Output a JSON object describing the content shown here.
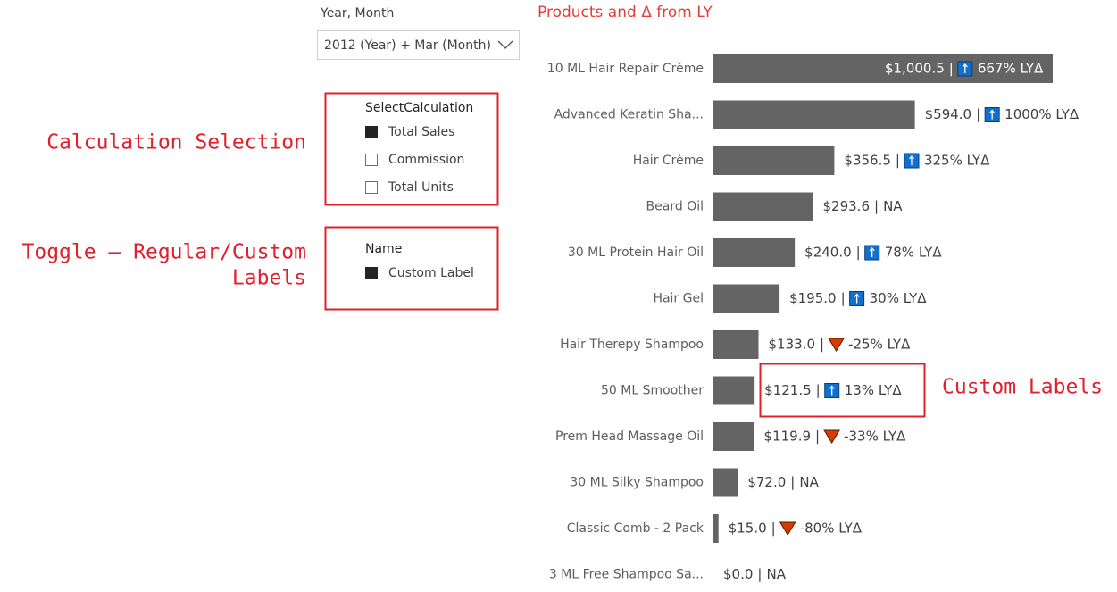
{
  "slicer": {
    "title": "Year, Month",
    "value": "2012 (Year) + Mar (Month)"
  },
  "calculation": {
    "title": "SelectCalculation",
    "items": [
      {
        "label": "Total Sales",
        "selected": true
      },
      {
        "label": "Commission",
        "selected": false
      },
      {
        "label": "Total Units",
        "selected": false
      }
    ]
  },
  "name_filter": {
    "title": "Name",
    "items": [
      {
        "label": "Custom Label",
        "selected": true
      }
    ]
  },
  "annotations": {
    "calculation": "Calculation Selection",
    "toggle": [
      "Toggle – Regular/Custom",
      "Labels"
    ],
    "custom": "Custom Labels"
  },
  "chart_data": {
    "type": "bar",
    "orientation": "horizontal",
    "title": "Products and Δ from LY",
    "color": "#646464",
    "categories": [
      "10 ML Hair Repair Crème",
      "Advanced Keratin Sha...",
      "Hair Crème",
      "Beard Oil",
      "30 ML Protein Hair Oil",
      "Hair Gel",
      "Hair Therepy Shampoo",
      "50 ML Smoother",
      "Prem Head Massage Oil",
      "30 ML Silky Shampoo",
      "Classic Comb - 2 Pack",
      "3 ML Free Shampoo Sa..."
    ],
    "values": [
      1000.5,
      594.0,
      356.5,
      293.6,
      240.0,
      195.0,
      133.0,
      121.5,
      119.9,
      72.0,
      15.0,
      0.0
    ],
    "value_labels": [
      "$1,000.5",
      "$594.0",
      "$356.5",
      "$293.6",
      "$240.0",
      "$195.0",
      "$133.0",
      "$121.5",
      "$119.9",
      "$72.0",
      "$15.0",
      "$0.0"
    ],
    "separator": "|",
    "delta_labels": [
      "667% LYΔ",
      "1000% LYΔ",
      "325% LYΔ",
      "NA",
      "78% LYΔ",
      "30% LYΔ",
      "-25% LYΔ",
      "13% LYΔ",
      "-33% LYΔ",
      "NA",
      "-80% LYΔ",
      "NA"
    ],
    "delta_direction": [
      "up",
      "up",
      "up",
      null,
      "up",
      "up",
      "down",
      "up",
      "down",
      null,
      "down",
      null
    ]
  }
}
